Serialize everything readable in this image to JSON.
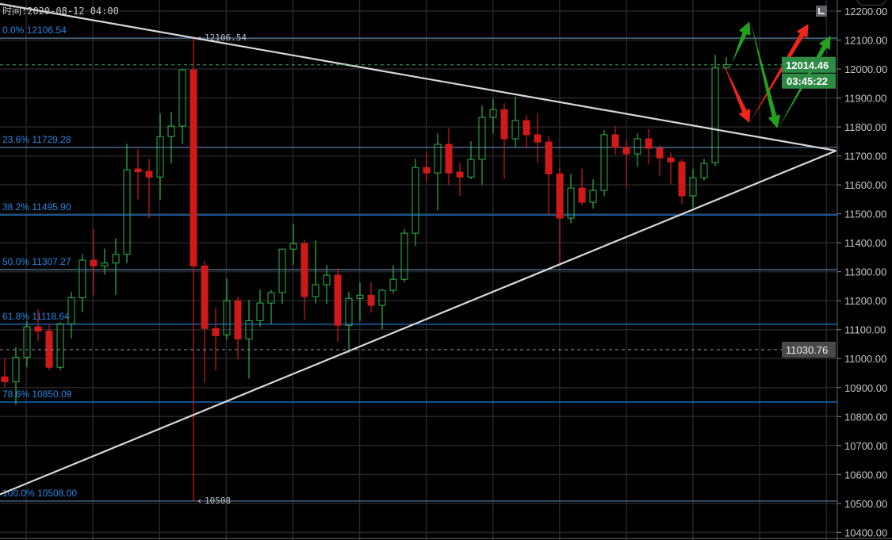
{
  "header": {
    "time_label": "时间:2020-08-12 04:00"
  },
  "controls": {
    "collapse_glyph": "^"
  },
  "chart_data": {
    "type": "candlestick",
    "title": "",
    "ylim": [
      10400,
      12200
    ],
    "y_ticks": [
      "12200.00",
      "12100.00",
      "12000.00",
      "11900.00",
      "11800.00",
      "11700.00",
      "11600.00",
      "11500.00",
      "11400.00",
      "11300.00",
      "11200.00",
      "11100.00",
      "11000.00",
      "10900.00",
      "10800.00",
      "10700.00",
      "10600.00",
      "10500.00",
      "10400.00"
    ],
    "y_tick_values": [
      12200,
      12100,
      12000,
      11900,
      11800,
      11700,
      11600,
      11500,
      11400,
      11300,
      11200,
      11100,
      11000,
      10900,
      10800,
      10700,
      10600,
      10500,
      10400
    ],
    "grid": true,
    "colors": {
      "up": "#2fb34a",
      "down": "#d01a1a",
      "background": "#000000",
      "grid": "#262626",
      "fib": "#1e7fe0",
      "fib_muted": "#5a7fa3",
      "trendline": "#d8d8d8",
      "current_price_bg": "#2e8b44",
      "ref_price_bg": "#4a4a4a"
    },
    "candles_ohlc": [
      [
        10937,
        11000,
        10900,
        10920
      ],
      [
        10920,
        11040,
        10840,
        11005
      ],
      [
        11005,
        11130,
        10970,
        11110
      ],
      [
        11110,
        11170,
        11060,
        11095
      ],
      [
        11095,
        11120,
        10960,
        10970
      ],
      [
        10970,
        11125,
        10960,
        11120
      ],
      [
        11120,
        11230,
        11070,
        11210
      ],
      [
        11210,
        11360,
        11160,
        11340
      ],
      [
        11340,
        11447,
        11219,
        11320
      ],
      [
        11320,
        11380,
        11290,
        11330
      ],
      [
        11330,
        11416,
        11220,
        11360
      ],
      [
        11360,
        11742,
        11330,
        11652
      ],
      [
        11655,
        11723,
        11551,
        11645
      ],
      [
        11647,
        11690,
        11485,
        11627
      ],
      [
        11627,
        11847,
        11548,
        11767
      ],
      [
        11767,
        11852,
        11674,
        11803
      ],
      [
        11803,
        12000,
        11742,
        11997
      ],
      [
        11997,
        12106.54,
        10508,
        11320
      ],
      [
        11320,
        11337,
        10915,
        11104
      ],
      [
        11104,
        11175,
        10959,
        11079
      ],
      [
        11082,
        11277,
        11066,
        11200
      ],
      [
        11200,
        11213,
        10997,
        11068
      ],
      [
        11068,
        11203,
        10931,
        11131
      ],
      [
        11131,
        11238,
        11110,
        11192
      ],
      [
        11192,
        11236,
        11120,
        11228
      ],
      [
        11228,
        11380,
        11189,
        11378
      ],
      [
        11378,
        11466,
        11323,
        11397
      ],
      [
        11397,
        11411,
        11134,
        11214
      ],
      [
        11214,
        11408,
        11190,
        11255
      ],
      [
        11255,
        11323,
        11189,
        11288
      ],
      [
        11288,
        11312,
        11057,
        11115
      ],
      [
        11115,
        11230,
        11019,
        11208
      ],
      [
        11208,
        11263,
        11129,
        11219
      ],
      [
        11219,
        11263,
        11159,
        11184
      ],
      [
        11184,
        11240,
        11101,
        11236
      ],
      [
        11236,
        11323,
        11225,
        11274
      ],
      [
        11274,
        11447,
        11265,
        11433
      ],
      [
        11433,
        11690,
        11389,
        11660
      ],
      [
        11660,
        11712,
        11611,
        11641
      ],
      [
        11641,
        11778,
        11512,
        11740
      ],
      [
        11740,
        11795,
        11600,
        11641
      ],
      [
        11644,
        11677,
        11562,
        11627
      ],
      [
        11627,
        11751,
        11620,
        11688
      ],
      [
        11688,
        11874,
        11600,
        11833
      ],
      [
        11833,
        11896,
        11778,
        11860
      ],
      [
        11860,
        11882,
        11619,
        11759
      ],
      [
        11759,
        11904,
        11731,
        11822
      ],
      [
        11822,
        11841,
        11726,
        11773
      ],
      [
        11773,
        11847,
        11677,
        11748
      ],
      [
        11748,
        11767,
        11496,
        11638
      ],
      [
        11638,
        11660,
        11320,
        11485
      ],
      [
        11485,
        11638,
        11468,
        11589
      ],
      [
        11589,
        11655,
        11529,
        11540
      ],
      [
        11540,
        11619,
        11518,
        11581
      ],
      [
        11581,
        11789,
        11562,
        11773
      ],
      [
        11773,
        11803,
        11704,
        11729
      ],
      [
        11729,
        11753,
        11589,
        11707
      ],
      [
        11707,
        11778,
        11663,
        11759
      ],
      [
        11759,
        11792,
        11671,
        11726
      ],
      [
        11726,
        11737,
        11630,
        11693
      ],
      [
        11693,
        11712,
        11603,
        11679
      ],
      [
        11679,
        11690,
        11534,
        11562
      ],
      [
        11562,
        11655,
        11521,
        11625
      ],
      [
        11625,
        11690,
        11615,
        11674
      ],
      [
        11677,
        12049,
        11665,
        12005
      ],
      [
        12005,
        12041,
        12000,
        12014.46
      ]
    ],
    "fibonacci": [
      {
        "label": "0.0% 12106.54",
        "price": 12106.54,
        "strong": false
      },
      {
        "label": "23.6% 11729.28",
        "price": 11729.28,
        "strong": false
      },
      {
        "label": "38.2% 11495.90",
        "price": 11495.9,
        "strong": true
      },
      {
        "label": "50.0% 11307.27",
        "price": 11307.27,
        "strong": false
      },
      {
        "label": "61.8% 11118.64",
        "price": 11118.64,
        "strong": true
      },
      {
        "label": "78.6% 10850.09",
        "price": 10850.09,
        "strong": true
      },
      {
        "label": "100.0% 10508.00",
        "price": 10508.0,
        "strong": false
      }
    ],
    "annotations": {
      "high_label": "12106.54",
      "low_label": "10508",
      "high_price": 12106.54,
      "low_price": 10508,
      "at_candle": 17
    },
    "trendlines": [
      {
        "from": [
          -0.43,
          12225
        ],
        "to": [
          74.9,
          11718
        ]
      },
      {
        "from": [
          -0.43,
          10531
        ],
        "to": [
          74.9,
          11718
        ]
      }
    ],
    "forecast_arrows": [
      {
        "color": "green",
        "from": [
          65.5,
          12019
        ],
        "to": [
          67.1,
          12164
        ]
      },
      {
        "color": "red",
        "from": [
          64.7,
          12022
        ],
        "to": [
          67.1,
          11814
        ]
      },
      {
        "color": "red",
        "from": [
          67.1,
          11814
        ],
        "to": [
          72.4,
          12156
        ]
      },
      {
        "color": "green",
        "from": [
          67.2,
          12162
        ],
        "to": [
          69.6,
          11795
        ]
      },
      {
        "color": "green",
        "from": [
          69.7,
          11795
        ],
        "to": [
          74.4,
          12115
        ]
      }
    ],
    "current_price": {
      "label": "12014.46",
      "value": 12014.46,
      "countdown": "03:45:22"
    },
    "reference_price": {
      "label": "11030.76",
      "value": 11030.76
    }
  }
}
